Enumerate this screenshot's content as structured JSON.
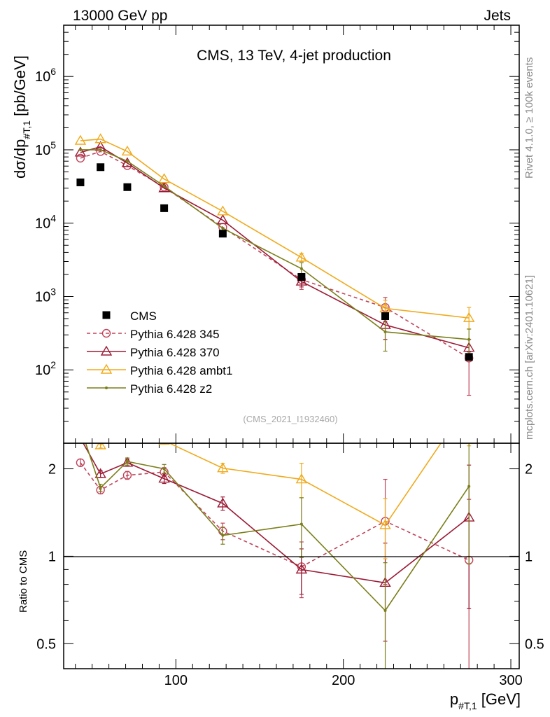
{
  "header": {
    "left": "13000 GeV pp",
    "right": "Jets",
    "side_top": "Rivet 4.1.0, ≥ 100k events",
    "side_bottom": "mcplots.cern.ch [arXiv:2401.10621]",
    "analysis_id": "(CMS_2021_I1932460)"
  },
  "chart_data": {
    "type": "scatter",
    "title": "CMS, 13 TeV, 4-jet production",
    "ylabel": {
      "main": "dσ/dp",
      "sub": "#T,1",
      "unit": " [pb/GeV]"
    },
    "xlabel": {
      "main": "p",
      "sub": "#T,1",
      "unit": " [GeV]"
    },
    "ratio_ylabel": "Ratio to CMS",
    "xlim": [
      33,
      305
    ],
    "ylim": [
      10,
      5000000
    ],
    "ratio_ylim": [
      0.41,
      2.45
    ],
    "yscale": "log",
    "x_ticks": [
      100,
      200,
      300
    ],
    "x_tick_labels": [
      "100",
      "200",
      "300"
    ],
    "y_ticks": [
      100,
      1000,
      10000,
      100000,
      1000000
    ],
    "y_tick_labels": [
      [
        "10",
        "2"
      ],
      [
        "10",
        "3"
      ],
      [
        "10",
        "4"
      ],
      [
        "10",
        "5"
      ],
      [
        "10",
        "6"
      ]
    ],
    "ratio_ticks": [
      0.5,
      1,
      2
    ],
    "ratio_tick_labels": [
      "0.5",
      "1",
      "2"
    ],
    "x": [
      43,
      55,
      71,
      93,
      128,
      175,
      225,
      275
    ],
    "data": {
      "name": "CMS",
      "color": "#000000",
      "values": [
        36000,
        58000,
        31000,
        16000,
        7200,
        1850,
        540,
        150
      ]
    },
    "series": [
      {
        "name": "Pythia 6.428 345",
        "color": "#c0445a",
        "marker": "circle",
        "dash": true,
        "values": [
          77000,
          95000,
          61000,
          31000,
          8800,
          1700,
          710,
          145
        ],
        "err_lo": [
          0,
          0,
          0,
          0,
          0,
          450,
          250,
          100
        ],
        "err_hi": [
          0,
          0,
          0,
          0,
          0,
          250,
          260,
          30
        ]
      },
      {
        "name": "Pythia 6.428 370",
        "color": "#9b1b35",
        "marker": "triangle",
        "dash": false,
        "values": [
          92000,
          110000,
          66000,
          30000,
          11000,
          1600,
          410,
          200
        ],
        "err_lo": [
          0,
          0,
          0,
          0,
          0,
          250,
          150,
          60
        ],
        "err_hi": [
          0,
          0,
          0,
          0,
          0,
          150,
          200,
          60
        ]
      },
      {
        "name": "Pythia 6.428 ambt1",
        "color": "#f0aa1c",
        "marker": "triangle",
        "dash": false,
        "values": [
          133000,
          140000,
          95000,
          40000,
          14500,
          3400,
          690,
          510
        ],
        "err_lo": [
          0,
          0,
          0,
          0,
          0,
          400,
          150,
          150
        ],
        "err_hi": [
          0,
          0,
          0,
          0,
          0,
          450,
          200,
          200
        ]
      },
      {
        "name": "Pythia 6.428 z2",
        "color": "#7a7f1a",
        "marker": "dot",
        "dash": false,
        "values": [
          100000,
          100000,
          70000,
          32000,
          8500,
          2400,
          330,
          260
        ],
        "err_lo": [
          0,
          0,
          0,
          0,
          0,
          400,
          150,
          100
        ],
        "err_hi": [
          0,
          0,
          0,
          0,
          0,
          500,
          250,
          100
        ]
      }
    ],
    "ratios": [
      {
        "values": [
          2.1,
          1.69,
          1.9,
          1.95,
          1.22,
          0.92,
          1.32,
          0.97
        ],
        "err_lo": [
          0.06,
          0.05,
          0.06,
          0.07,
          0.08,
          0.2,
          0.52,
          0.6
        ],
        "err_hi": [
          0.06,
          0.05,
          0.06,
          0.07,
          0.08,
          0.2,
          0.52,
          0.6
        ]
      },
      {
        "values": [
          2.55,
          1.92,
          2.1,
          1.85,
          1.52,
          0.9,
          0.81,
          1.36
        ],
        "err_lo": [
          0.06,
          0.05,
          0.06,
          0.07,
          0.08,
          0.16,
          0.3,
          0.7
        ],
        "err_hi": [
          0.06,
          0.05,
          0.06,
          0.07,
          0.08,
          0.16,
          0.3,
          0.7
        ]
      },
      {
        "values": [
          3.7,
          2.41,
          3.06,
          2.5,
          2.01,
          1.84,
          1.28,
          3.4
        ],
        "err_lo": [
          0.06,
          0.05,
          0.06,
          0.07,
          0.08,
          0.25,
          0.3,
          1.0
        ],
        "err_hi": [
          0.06,
          0.05,
          0.06,
          0.07,
          0.08,
          0.25,
          0.3,
          1.0
        ]
      },
      {
        "values": [
          2.78,
          1.72,
          2.12,
          2.0,
          1.18,
          1.29,
          0.65,
          1.74
        ],
        "err_lo": [
          0.06,
          0.05,
          0.06,
          0.07,
          0.08,
          0.3,
          0.3,
          0.8
        ],
        "err_hi": [
          0.06,
          0.05,
          0.06,
          0.07,
          0.08,
          0.3,
          0.3,
          0.8
        ]
      }
    ],
    "legend_position": "lower-left"
  }
}
